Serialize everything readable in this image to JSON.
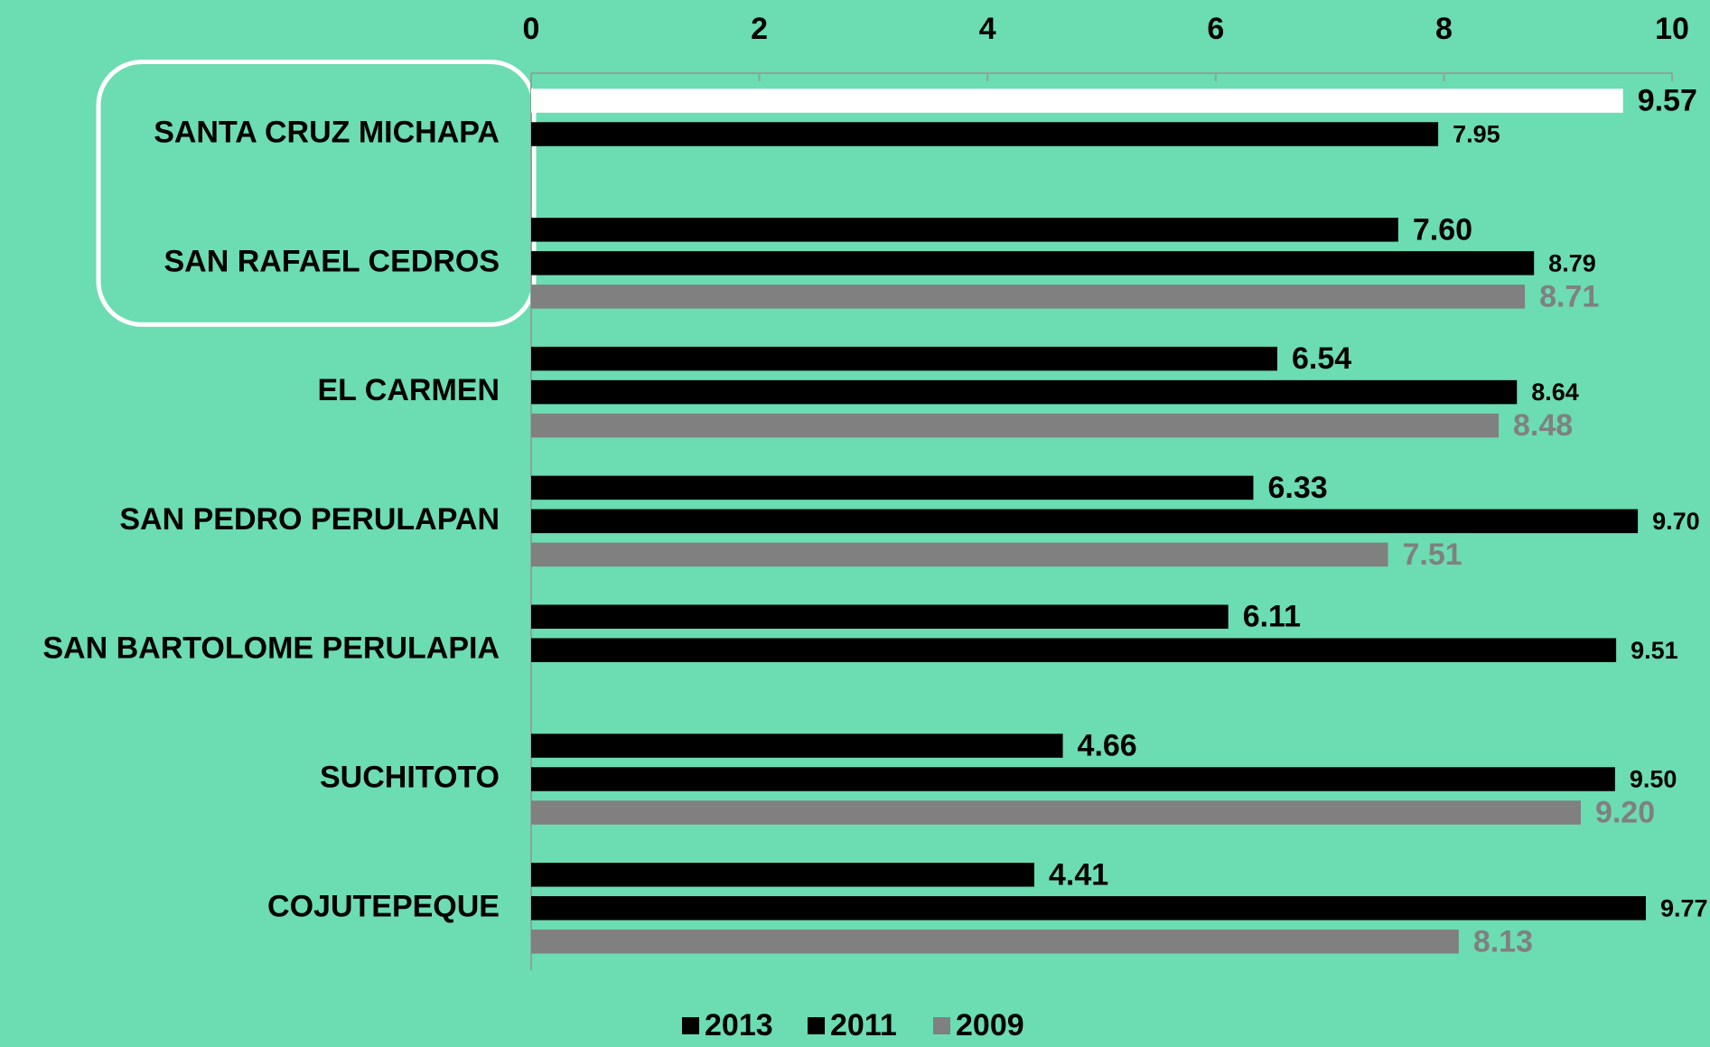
{
  "chart_data": {
    "type": "bar",
    "orientation": "horizontal",
    "categories": [
      "SANTA CRUZ MICHAPA",
      "SAN RAFAEL CEDROS",
      "EL CARMEN",
      "SAN PEDRO PERULAPAN",
      "SAN BARTOLOME PERULAPIA",
      "SUCHITOTO",
      "COJUTEPEQUE"
    ],
    "series": [
      {
        "name": "2013",
        "color": "#000000",
        "label_color": "#000000",
        "point_colors": [
          "#ffffff",
          "#000000",
          "#000000",
          "#000000",
          "#000000",
          "#000000",
          "#000000"
        ],
        "values": [
          9.57,
          7.6,
          6.54,
          6.33,
          6.11,
          4.66,
          4.41
        ],
        "value_labels": [
          "9.57",
          "7.60",
          "6.54",
          "6.33",
          "6.11",
          "4.66",
          "4.41"
        ]
      },
      {
        "name": "2011",
        "color": "#000000",
        "label_color": "#000000",
        "values": [
          7.95,
          8.79,
          8.64,
          9.7,
          9.51,
          9.5,
          9.77
        ],
        "value_labels": [
          "7.95",
          "8.79",
          "8.64",
          "9.70",
          "9.51",
          "9.50",
          "9.77"
        ]
      },
      {
        "name": "2009",
        "color": "#808080",
        "label_color": "#808080",
        "values": [
          null,
          8.71,
          8.48,
          7.51,
          null,
          9.2,
          8.13
        ],
        "value_labels": [
          null,
          "8.71",
          "8.48",
          "7.51",
          null,
          "9.20",
          "8.13"
        ]
      }
    ],
    "xlim": [
      0,
      10
    ],
    "xticks": [
      0,
      2,
      4,
      6,
      8,
      10
    ],
    "axis_position": "top",
    "highlight_categories": [
      0,
      1
    ],
    "legend": "bottom"
  }
}
